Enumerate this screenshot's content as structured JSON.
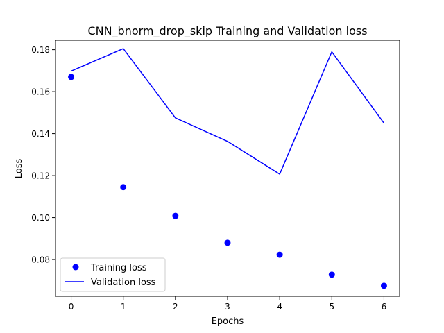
{
  "chart_data": {
    "type": "line",
    "title": "CNN_bnorm_drop_skip Training and Validation loss",
    "xlabel": "Epochs",
    "ylabel": "Loss",
    "x": [
      0,
      1,
      2,
      3,
      4,
      5,
      6
    ],
    "xlim": [
      -0.3,
      6.3
    ],
    "ylim": [
      0.0625,
      0.1845
    ],
    "xticks": [
      0,
      1,
      2,
      3,
      4,
      5,
      6
    ],
    "yticks": [
      0.08,
      0.1,
      0.12,
      0.14,
      0.16,
      0.18
    ],
    "ytick_labels": [
      "0.08",
      "0.10",
      "0.12",
      "0.14",
      "0.16",
      "0.18"
    ],
    "grid": false,
    "legend_position": "lower-left",
    "series": [
      {
        "name": "Training loss",
        "style": "points",
        "color": "#0000ff",
        "values": [
          0.167,
          0.1145,
          0.1008,
          0.088,
          0.0823,
          0.0728,
          0.0675
        ]
      },
      {
        "name": "Validation loss",
        "style": "line",
        "color": "#0000ff",
        "values": [
          0.1698,
          0.1805,
          0.1475,
          0.1363,
          0.1207,
          0.179,
          0.145
        ]
      }
    ]
  }
}
